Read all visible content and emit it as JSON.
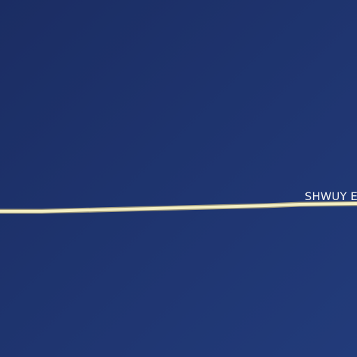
{
  "map": {
    "road": {
      "label": "SHWUY E"
    },
    "colors": {
      "water": "#1f3570",
      "road_fill": "#f4efc3",
      "road_casing": "#9f9a7e",
      "label_text": "#f2f2f2"
    }
  }
}
